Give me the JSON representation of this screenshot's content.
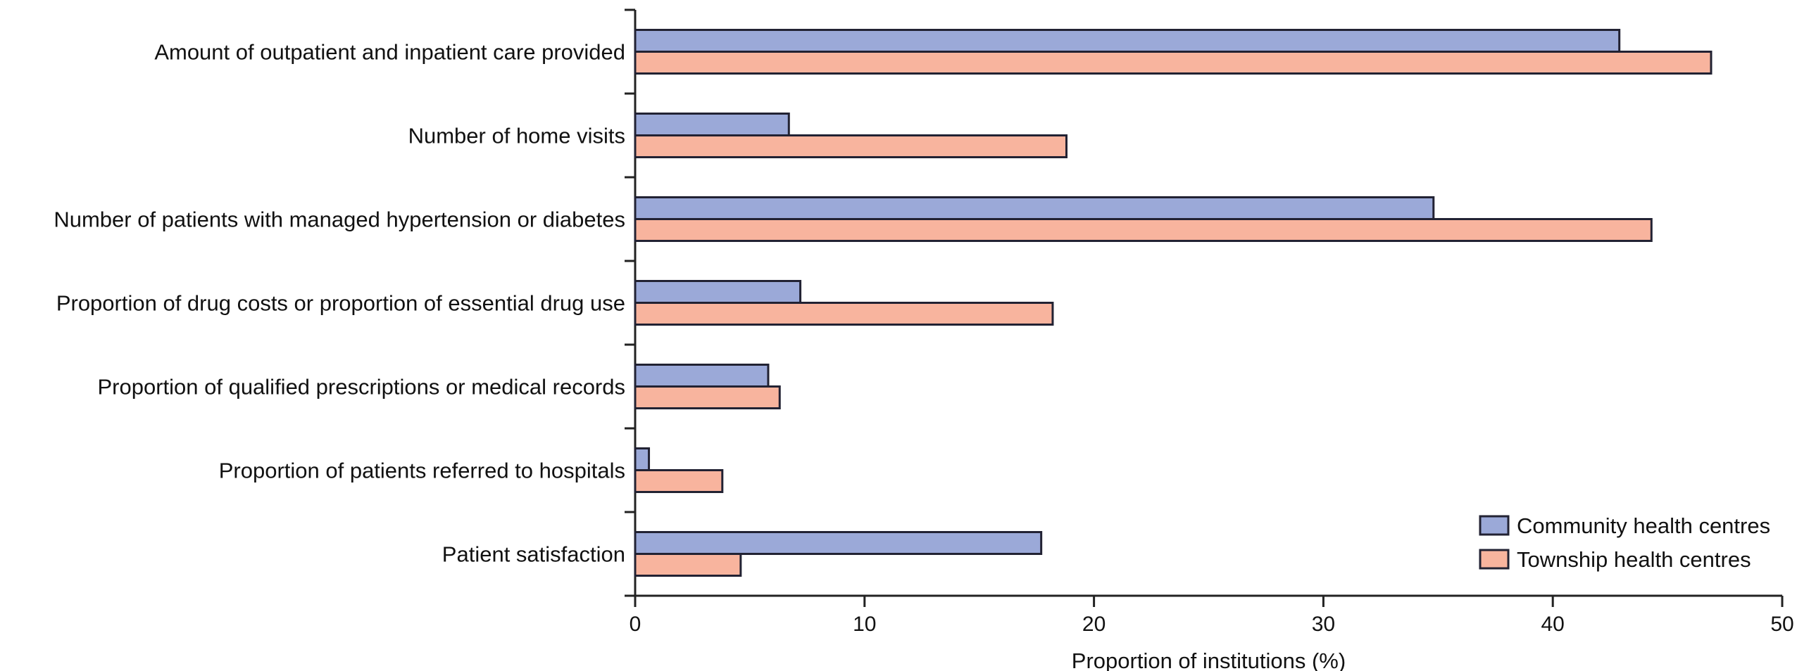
{
  "chart_data": {
    "type": "bar",
    "orientation": "horizontal",
    "categories": [
      "Amount of outpatient and inpatient care provided",
      "Number of home visits",
      "Number of patients with managed hypertension or diabetes",
      "Proportion of drug costs or proportion of essential drug use",
      "Proportion of qualified prescriptions or medical records",
      "Proportion of patients referred to hospitals",
      "Patient satisfaction"
    ],
    "series": [
      {
        "name": "Community health centres",
        "color": "#9ba9d8",
        "values": [
          42.9,
          6.7,
          34.8,
          7.2,
          5.8,
          0.6,
          17.7
        ]
      },
      {
        "name": "Township health centres",
        "color": "#f8b49e",
        "values": [
          46.9,
          18.8,
          44.3,
          18.2,
          6.3,
          3.8,
          4.6
        ]
      }
    ],
    "xlabel": "Proportion of institutions (%)",
    "ylabel": "",
    "title": "",
    "xlim": [
      0,
      50
    ],
    "xticks": [
      0,
      10,
      20,
      30,
      40,
      50
    ],
    "grid": false,
    "legend_position": "bottom-right",
    "bar_outline_color": "#222233"
  }
}
